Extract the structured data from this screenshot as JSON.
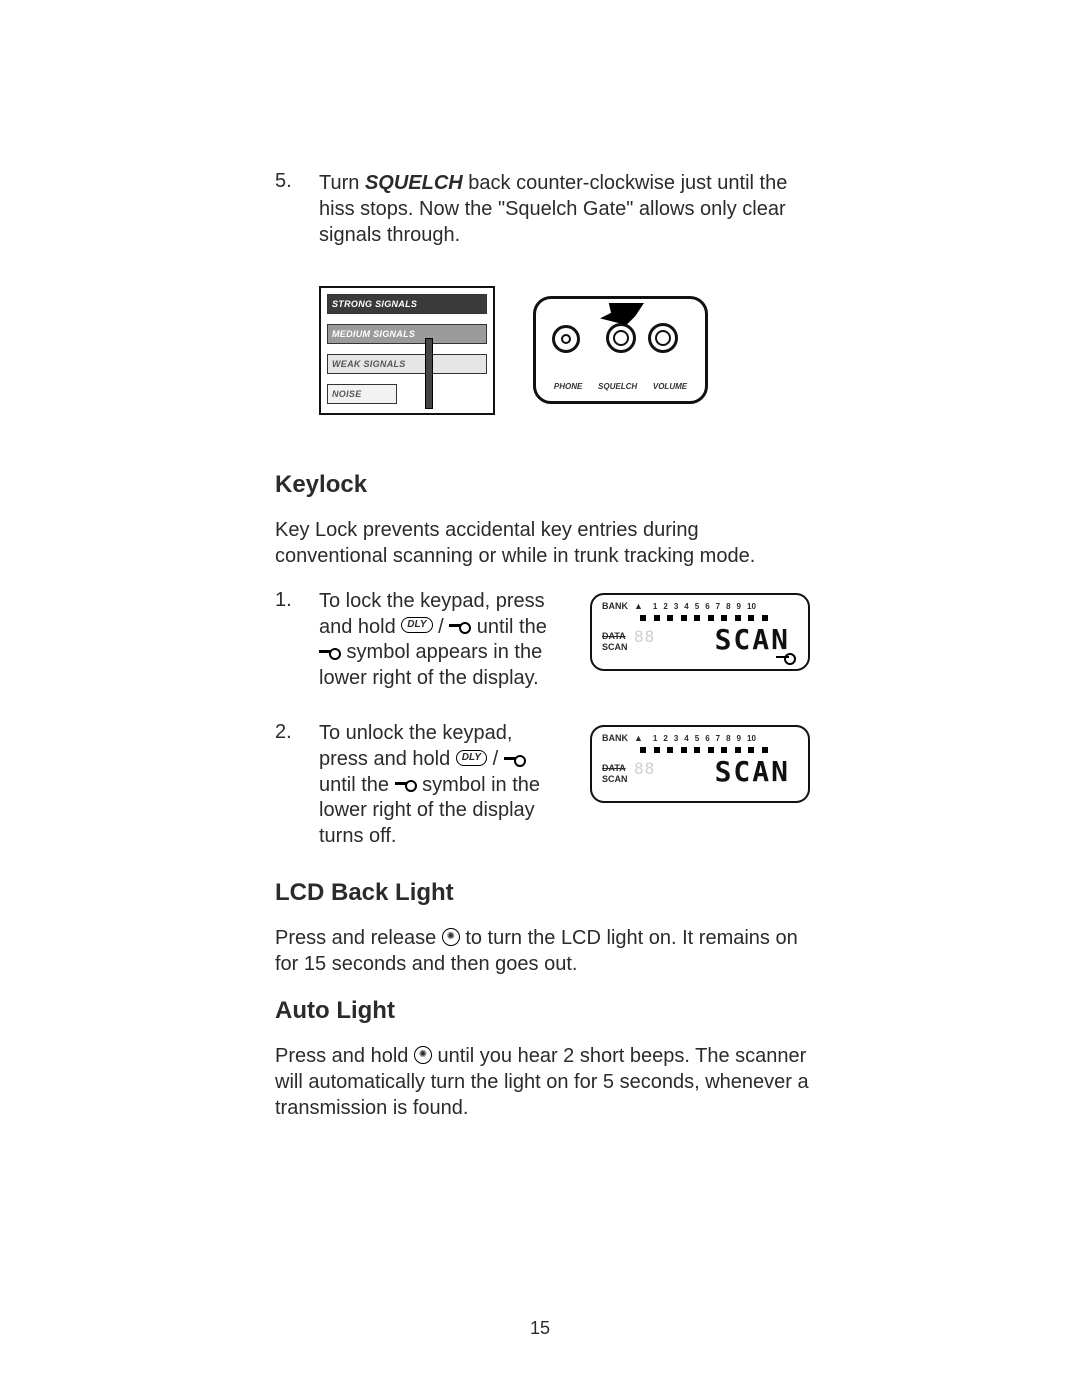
{
  "step5": {
    "num": "5.",
    "pre": "Turn ",
    "squelch": "SQUELCH",
    "post": " back counter-clockwise just until the hiss stops. Now the \"Squelch Gate\" allows only clear signals through."
  },
  "gate_labels": {
    "strong": "STRONG SIGNALS",
    "medium": "MEDIUM SIGNALS",
    "weak": "WEAK SIGNALS",
    "noise": "NOISE"
  },
  "radio_labels": {
    "phone": "PHONE",
    "squelch": "SQUELCH",
    "volume": "VOLUME"
  },
  "keylock": {
    "heading": "Keylock",
    "intro": "Key Lock prevents accidental key entries during conventional scanning or while in trunk tracking mode.",
    "steps": [
      {
        "num": "1.",
        "a": "To lock the keypad, press and hold ",
        "dly": "DLY",
        "b": " until the ",
        "c": " symbol appears in the lower right of the display.",
        "lcd_has_key": true
      },
      {
        "num": "2.",
        "a": "To unlock the keypad, press and hold ",
        "dly": "DLY",
        "b": " until the ",
        "c": " symbol in the lower right of the display turns off.",
        "lcd_has_key": false
      }
    ]
  },
  "lcd": {
    "bank": "BANK",
    "nums": [
      "1",
      "2",
      "3",
      "4",
      "5",
      "6",
      "7",
      "8",
      "9",
      "10"
    ],
    "data": "DATA",
    "scan_label": "SCAN",
    "digits": "88",
    "scan": "SCAN"
  },
  "backlight": {
    "heading": "LCD Back Light",
    "a": "Press and release ",
    "b": " to turn the LCD light on. It remains on for 15 seconds and then goes out."
  },
  "autolight": {
    "heading": "Auto Light",
    "a": "Press and hold ",
    "b": " until you hear 2 short beeps. The scanner will automatically turn the light on for 5 seconds, whenever a transmission is found."
  },
  "page_number": "15"
}
